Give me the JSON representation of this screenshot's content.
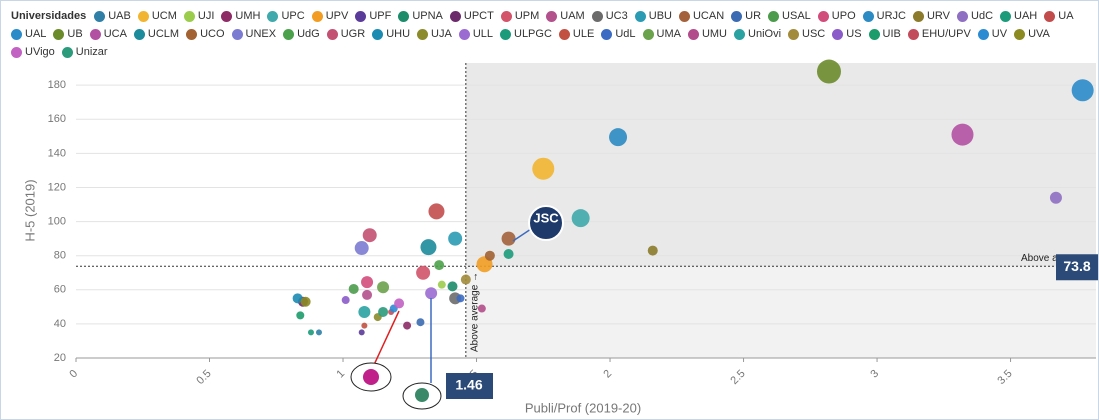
{
  "chart_data": {
    "type": "scatter",
    "legend_title": "Universidades",
    "x_label": "Publi/Prof (2019-20)",
    "y_label": "H-5 (2019)",
    "xlim": [
      0,
      3.82
    ],
    "xticks": [
      0,
      0.5,
      1,
      1.5,
      2,
      2.5,
      3,
      3.5
    ],
    "ylim": [
      20,
      193
    ],
    "yticks": [
      20,
      40,
      60,
      80,
      100,
      120,
      140,
      160,
      180
    ],
    "grid": true,
    "x_average": 1.46,
    "y_average": 73.8,
    "x_average_label": "Above average →",
    "y_average_label": "Above average",
    "logo_label": "JSC",
    "series": [
      {
        "name": "UAB",
        "color": "#2f7fa6",
        "x": [
          0.91
        ],
        "values": [
          35
        ],
        "sizes": [
          36
        ]
      },
      {
        "name": "UCM",
        "color": "#f2b531",
        "x": [
          1.75
        ],
        "values": [
          131
        ],
        "sizes": [
          484
        ]
      },
      {
        "name": "UJI",
        "color": "#9ccc4c",
        "x": [
          1.37
        ],
        "values": [
          63
        ],
        "sizes": [
          64
        ]
      },
      {
        "name": "UMH",
        "color": "#8c2b66",
        "x": [
          1.24
        ],
        "values": [
          39
        ],
        "sizes": [
          64
        ]
      },
      {
        "name": "UPC",
        "color": "#3fa9ab",
        "x": [
          1.89
        ],
        "values": [
          102
        ],
        "sizes": [
          324
        ]
      },
      {
        "name": "UPV",
        "color": "#f29d22",
        "x": [
          1.53
        ],
        "values": [
          75
        ],
        "sizes": [
          256
        ]
      },
      {
        "name": "UPF",
        "color": "#5b3b9a",
        "x": [
          1.07
        ],
        "values": [
          35
        ],
        "sizes": [
          36
        ]
      },
      {
        "name": "UPNA",
        "color": "#1c8c6a",
        "x": [
          1.41
        ],
        "values": [
          62
        ],
        "sizes": [
          100
        ]
      },
      {
        "name": "UPCT",
        "color": "#6b2b6b",
        "x": [
          0.85
        ],
        "values": [
          53
        ],
        "sizes": [
          100
        ]
      },
      {
        "name": "UPM",
        "color": "#d2536a",
        "x": [
          1.3
        ],
        "values": [
          70
        ],
        "sizes": [
          196
        ]
      },
      {
        "name": "UAM",
        "color": "#b2518c",
        "x": [
          1.09
        ],
        "values": [
          57
        ],
        "sizes": [
          100
        ]
      },
      {
        "name": "UC3",
        "color": "#6b6b6b",
        "x": [
          1.42
        ],
        "values": [
          55
        ],
        "sizes": [
          144
        ]
      },
      {
        "name": "UBU",
        "color": "#2a9bb2",
        "x": [
          1.42
        ],
        "values": [
          90
        ],
        "sizes": [
          196
        ]
      },
      {
        "name": "UCAN",
        "color": "#a3623b",
        "x": [
          1.62
        ],
        "values": [
          90
        ],
        "sizes": [
          196
        ]
      },
      {
        "name": "UR",
        "color": "#3b6bb2",
        "x": [
          1.29
        ],
        "values": [
          41
        ],
        "sizes": [
          64
        ]
      },
      {
        "name": "USAL",
        "color": "#4c9b4c",
        "x": [
          1.04
        ],
        "values": [
          60.5
        ],
        "sizes": [
          100
        ]
      },
      {
        "name": "UPO",
        "color": "#d24c7b",
        "x": [
          1.09
        ],
        "values": [
          64.5
        ],
        "sizes": [
          144
        ]
      },
      {
        "name": "URJC",
        "color": "#2b8bc2",
        "x": [
          2.03
        ],
        "values": [
          149.5
        ],
        "sizes": [
          324
        ]
      },
      {
        "name": "URV",
        "color": "#8c7b2b",
        "x": [
          2.16
        ],
        "values": [
          83
        ],
        "sizes": [
          100
        ]
      },
      {
        "name": "UdC",
        "color": "#8f6fc2",
        "x": [
          3.67
        ],
        "values": [
          114
        ],
        "sizes": [
          144
        ]
      },
      {
        "name": "UAH",
        "color": "#1c9b7b",
        "x": [
          1.62
        ],
        "values": [
          81
        ],
        "sizes": [
          100
        ]
      },
      {
        "name": "UA",
        "color": "#c24c4c",
        "x": [
          1.35
        ],
        "values": [
          106
        ],
        "sizes": [
          256
        ]
      },
      {
        "name": "UAL",
        "color": "#2b8bc9",
        "x": [
          3.77
        ],
        "values": [
          177
        ],
        "sizes": [
          484
        ]
      },
      {
        "name": "UB",
        "color": "#6b8b2b",
        "x": [
          2.82
        ],
        "values": [
          188
        ],
        "sizes": [
          576
        ]
      },
      {
        "name": "UCA",
        "color": "#b251a2",
        "x": [
          3.32
        ],
        "values": [
          151
        ],
        "sizes": [
          484
        ]
      },
      {
        "name": "UCLM",
        "color": "#1c8b9b",
        "x": [
          1.32
        ],
        "values": [
          85
        ],
        "sizes": [
          256
        ]
      },
      {
        "name": "UCO",
        "color": "#a26232",
        "x": [
          1.55
        ],
        "values": [
          80
        ],
        "sizes": [
          100
        ]
      },
      {
        "name": "UNEX",
        "color": "#7b7bd2",
        "x": [
          1.07
        ],
        "values": [
          84.5
        ],
        "sizes": [
          196
        ]
      },
      {
        "name": "UdG",
        "color": "#4ca24c",
        "x": [
          1.36
        ],
        "values": [
          74.5
        ],
        "sizes": [
          100
        ]
      },
      {
        "name": "UGR",
        "color": "#c25172",
        "x": [
          1.1
        ],
        "values": [
          92
        ],
        "sizes": [
          196
        ]
      },
      {
        "name": "UHU",
        "color": "#1c8bb2",
        "x": [
          0.83
        ],
        "values": [
          55
        ],
        "sizes": [
          100
        ]
      },
      {
        "name": "UJA",
        "color": "#8b8b2b",
        "x": [
          1.13
        ],
        "values": [
          44
        ],
        "sizes": [
          64
        ]
      },
      {
        "name": "ULL",
        "color": "#9b6bd2",
        "x": [
          1.33
        ],
        "values": [
          58
        ],
        "sizes": [
          144
        ]
      },
      {
        "name": "ULPGC",
        "color": "#1c9b7b",
        "x": [
          0.88
        ],
        "values": [
          35
        ],
        "sizes": [
          36
        ]
      },
      {
        "name": "ULE",
        "color": "#c25142",
        "x": [
          1.08
        ],
        "values": [
          39
        ],
        "sizes": [
          36
        ]
      },
      {
        "name": "UdL",
        "color": "#3b6bc2",
        "x": [
          1.44
        ],
        "values": [
          55
        ],
        "sizes": [
          64
        ]
      },
      {
        "name": "UMA",
        "color": "#6ba24c",
        "x": [
          1.15
        ],
        "values": [
          61.5
        ],
        "sizes": [
          144
        ]
      },
      {
        "name": "UMU",
        "color": "#b24c8b",
        "x": [
          1.52
        ],
        "values": [
          49
        ],
        "sizes": [
          64
        ]
      },
      {
        "name": "UniOvi",
        "color": "#2ba2a2",
        "x": [
          1.08
        ],
        "values": [
          47
        ],
        "sizes": [
          144
        ]
      },
      {
        "name": "USC",
        "color": "#a28b3b",
        "x": [
          1.46
        ],
        "values": [
          66
        ],
        "sizes": [
          100
        ]
      },
      {
        "name": "US",
        "color": "#8b5bc9",
        "x": [
          1.01
        ],
        "values": [
          54
        ],
        "sizes": [
          64
        ]
      },
      {
        "name": "UIB",
        "color": "#1c9b6b",
        "x": [
          0.84
        ],
        "values": [
          45
        ],
        "sizes": [
          64
        ]
      },
      {
        "name": "EHU/UPV",
        "color": "#c24c5b",
        "x": [
          1.18
        ],
        "values": [
          47
        ],
        "sizes": [
          36
        ]
      },
      {
        "name": "UV",
        "color": "#2b8bd2",
        "x": [
          1.19
        ],
        "values": [
          49
        ],
        "sizes": [
          64
        ]
      },
      {
        "name": "UVA",
        "color": "#8b8b22",
        "x": [
          0.86
        ],
        "values": [
          53
        ],
        "sizes": [
          100
        ]
      },
      {
        "name": "UVigo",
        "color": "#c262c2",
        "x": [
          1.21
        ],
        "values": [
          52
        ],
        "sizes": [
          100
        ]
      },
      {
        "name": "Unizar",
        "color": "#2b9b7b",
        "x": [
          1.15
        ],
        "values": [
          47
        ],
        "sizes": [
          100
        ]
      }
    ]
  }
}
